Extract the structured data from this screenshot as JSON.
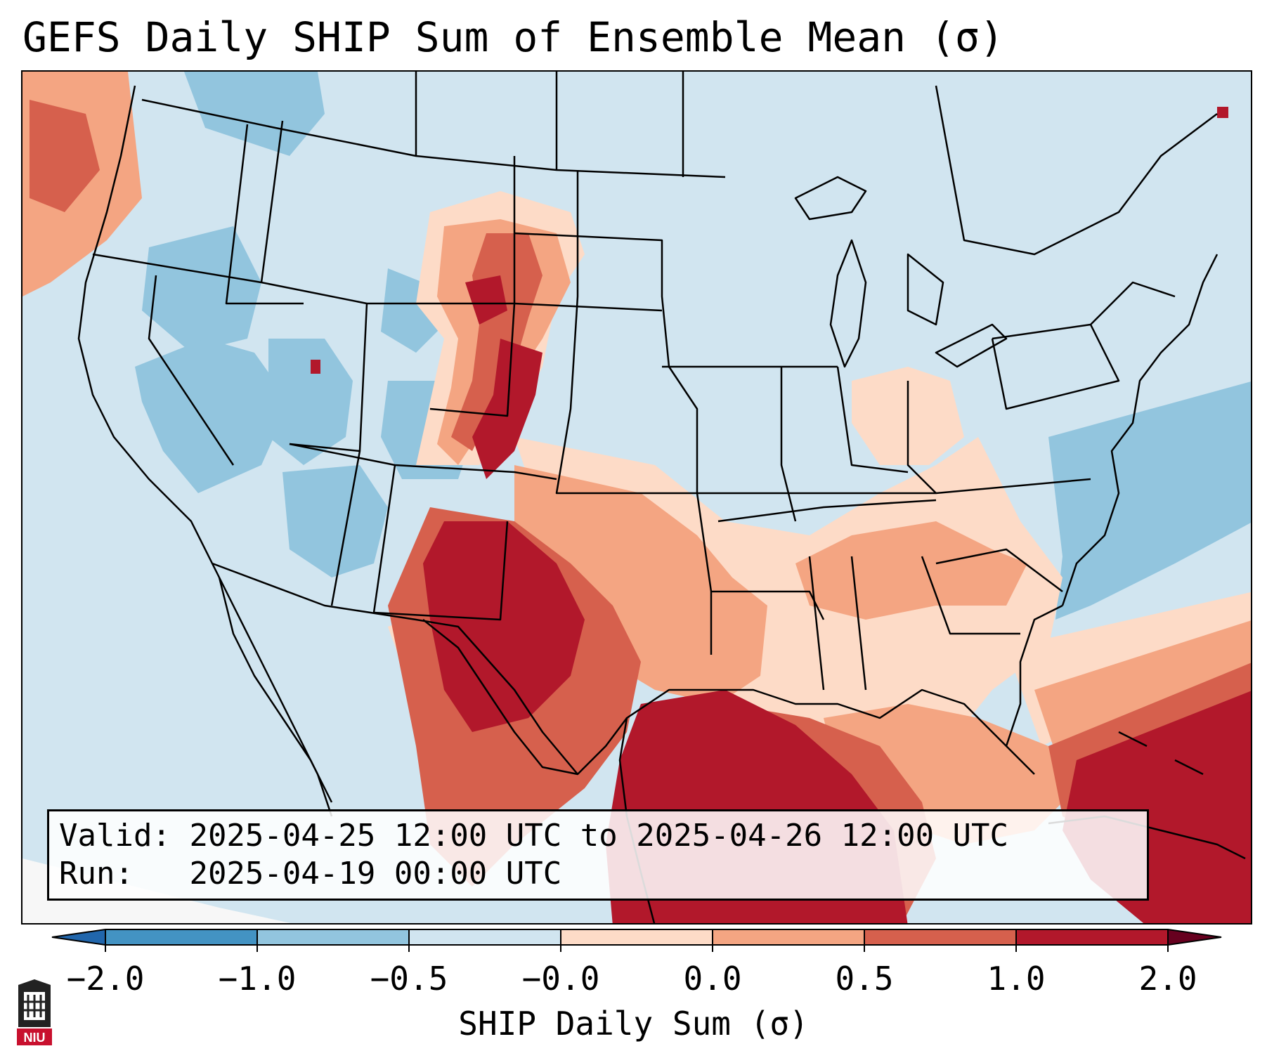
{
  "title": "GEFS Daily SHIP Sum of Ensemble Mean (σ)",
  "info": {
    "valid_label": "Valid:",
    "valid_value": "2025-04-25 12:00 UTC to 2025-04-26 12:00 UTC",
    "run_label": "Run:",
    "run_value": "2025-04-19 00:00 UTC"
  },
  "colorbar": {
    "label": "SHIP Daily Sum (σ)",
    "ticks": [
      "−2.0",
      "−1.0",
      "−0.5",
      "−0.0",
      "0.0",
      "0.5",
      "1.0",
      "2.0"
    ],
    "colors": [
      "#4393c3",
      "#92c5de",
      "#d1e5f0",
      "#f7f7f7",
      "#fddbc7",
      "#f4a582",
      "#d6604d",
      "#b2182b"
    ]
  },
  "logo_text": "NIU"
}
